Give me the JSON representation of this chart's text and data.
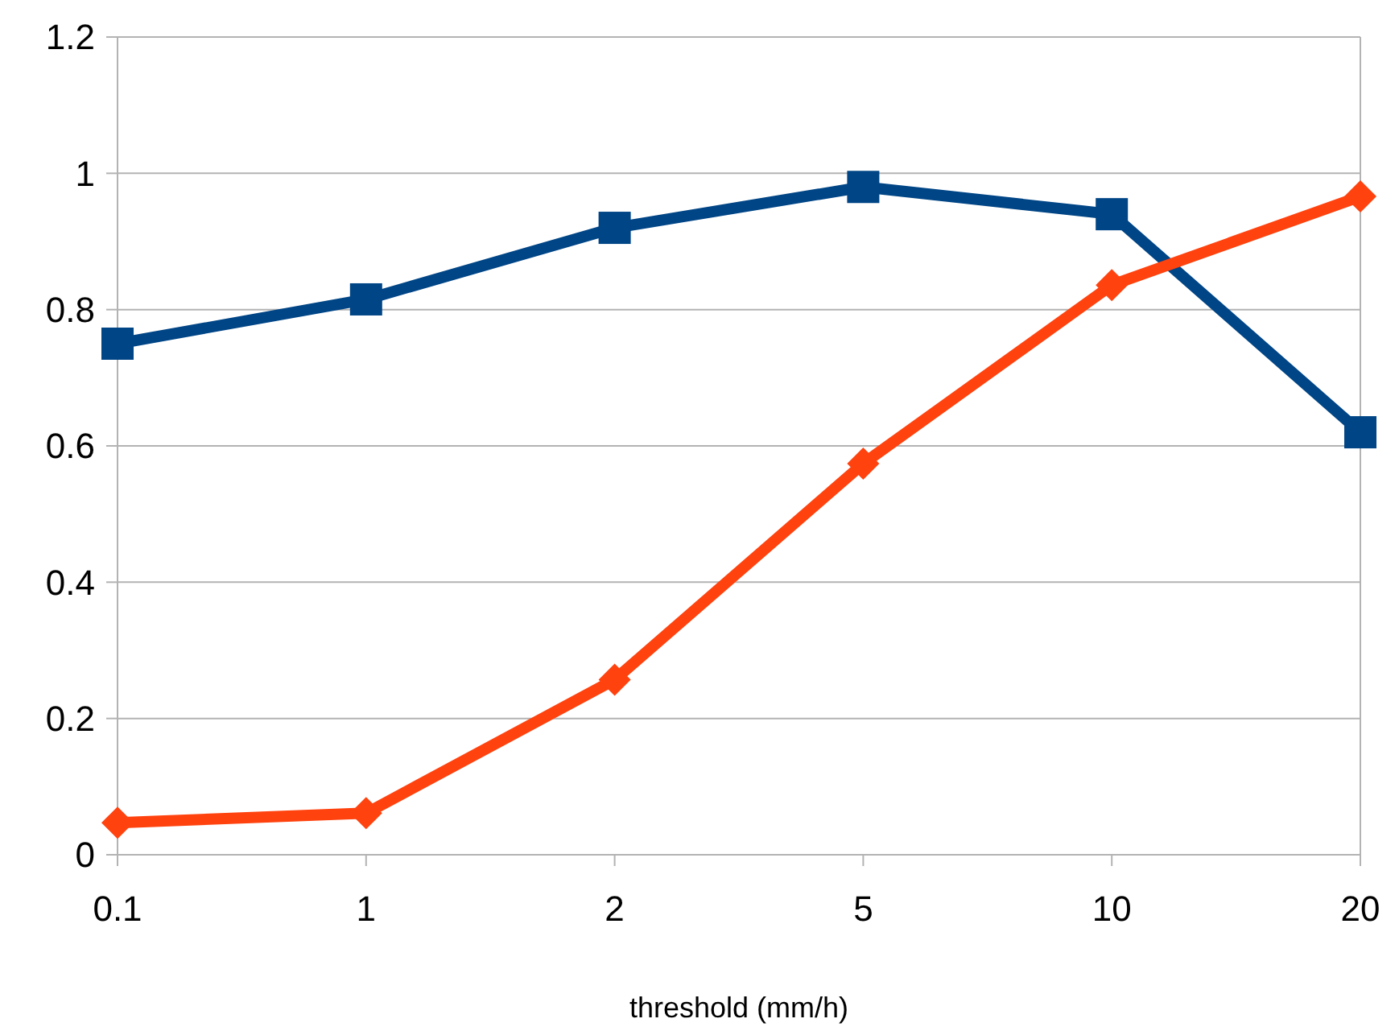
{
  "chart_data": {
    "type": "line",
    "xlabel": "threshold (mm/h)",
    "categories": [
      "0.1",
      "1",
      "2",
      "5",
      "10",
      "20"
    ],
    "series": [
      {
        "color": "#004586",
        "marker": "square",
        "values": [
          0.75,
          0.815,
          0.92,
          0.98,
          0.94,
          0.62
        ]
      },
      {
        "color": "#ff420e",
        "marker": "diamond",
        "values": [
          0.047,
          0.061,
          0.257,
          0.574,
          0.836,
          0.966
        ]
      }
    ],
    "ylim": [
      0,
      1.2
    ],
    "yticks": [
      0,
      0.2,
      0.4,
      0.6,
      0.8,
      1,
      1.2
    ],
    "grid": "y",
    "line_style": "solid"
  }
}
